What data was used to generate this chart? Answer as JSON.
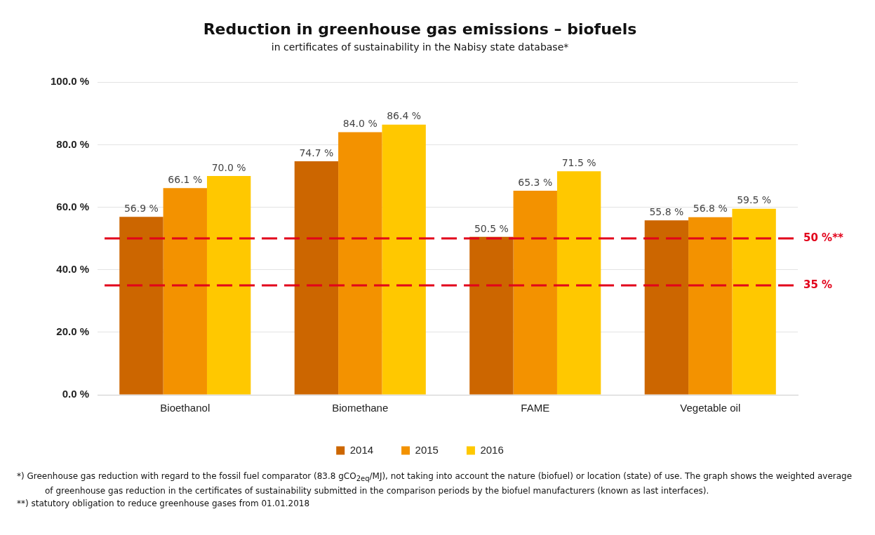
{
  "chart_data": {
    "type": "bar",
    "title": "Reduction in greenhouse gas emissions – biofuels",
    "subtitle": "in certificates of sustainability in the Nabisy state database*",
    "categories": [
      "Bioethanol",
      "Biomethane",
      "FAME",
      "Vegetable oil"
    ],
    "series": [
      {
        "name": "2014",
        "color": "#cc6600",
        "values": [
          56.9,
          74.7,
          50.5,
          55.8
        ],
        "value_labels": [
          "56.9 %",
          "74.7 %",
          "50.5 %",
          "55.8 %"
        ]
      },
      {
        "name": "2015",
        "color": "#f39200",
        "values": [
          66.1,
          84.0,
          65.3,
          56.8
        ],
        "value_labels": [
          "66.1 %",
          "84.0 %",
          "65.3 %",
          "56.8 %"
        ]
      },
      {
        "name": "2016",
        "color": "#ffc800",
        "values": [
          70.0,
          86.4,
          71.5,
          59.5
        ],
        "value_labels": [
          "70.0 %",
          "86.4 %",
          "71.5 %",
          "59.5 %"
        ]
      }
    ],
    "ylim": [
      0,
      100
    ],
    "yticks": [
      {
        "value": 0,
        "label": "0.0 %"
      },
      {
        "value": 20,
        "label": "20.0 %"
      },
      {
        "value": 40,
        "label": "40.0 %"
      },
      {
        "value": 60,
        "label": "60.0 %"
      },
      {
        "value": 80,
        "label": "80.0 %"
      },
      {
        "value": 100,
        "label": "100.0 %"
      }
    ],
    "grid": "y",
    "legend": "bottom",
    "ref_lines": [
      {
        "axis": "y",
        "value": 50,
        "label": "50 %**",
        "color": "#e2001a",
        "line_style": "dashed"
      },
      {
        "axis": "y",
        "value": 35,
        "label": "35 %",
        "color": "#e2001a",
        "line_style": "dashed"
      }
    ],
    "annotations": [
      "*) Greenhouse gas reduction with regard to the fossil fuel comparator (83.8 gCO$_{2eq}$/MJ), not taking into account the nature (biofuel) or location (state) of use. The graph shows the weighted average of greenhouse gas reduction in the certificates of sustainability submitted in the comparison periods by the biofuel manufacturers (known as last interfaces).",
      "**) statutory obligation to reduce greenhouse gases from 01.01.2018"
    ]
  }
}
